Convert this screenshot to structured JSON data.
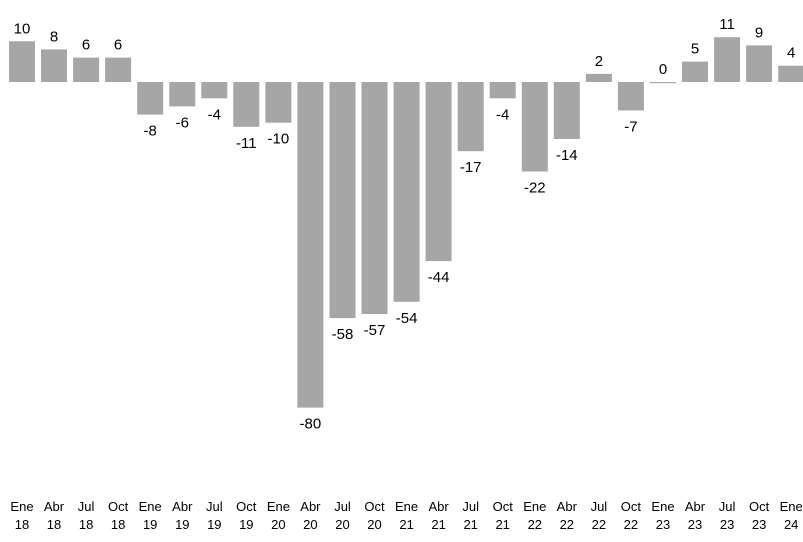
{
  "chart_data": {
    "type": "bar",
    "title": "",
    "xlabel": "",
    "ylabel": "",
    "ylim": [
      -80,
      11
    ],
    "grid": false,
    "legend": "none",
    "bar_color": "#a6a6a6",
    "label_color": "#000000",
    "background": "#ffffff",
    "categories": [
      {
        "month": "Ene",
        "year": "18"
      },
      {
        "month": "Abr",
        "year": "18"
      },
      {
        "month": "Jul",
        "year": "18"
      },
      {
        "month": "Oct",
        "year": "18"
      },
      {
        "month": "Ene",
        "year": "19"
      },
      {
        "month": "Abr",
        "year": "19"
      },
      {
        "month": "Jul",
        "year": "19"
      },
      {
        "month": "Oct",
        "year": "19"
      },
      {
        "month": "Ene",
        "year": "20"
      },
      {
        "month": "Abr",
        "year": "20"
      },
      {
        "month": "Jul",
        "year": "20"
      },
      {
        "month": "Oct",
        "year": "20"
      },
      {
        "month": "Ene",
        "year": "21"
      },
      {
        "month": "Abr",
        "year": "21"
      },
      {
        "month": "Jul",
        "year": "21"
      },
      {
        "month": "Oct",
        "year": "21"
      },
      {
        "month": "Ene",
        "year": "22"
      },
      {
        "month": "Abr",
        "year": "22"
      },
      {
        "month": "Jul",
        "year": "22"
      },
      {
        "month": "Oct",
        "year": "22"
      },
      {
        "month": "Ene",
        "year": "23"
      },
      {
        "month": "Abr",
        "year": "23"
      },
      {
        "month": "Jul",
        "year": "23"
      },
      {
        "month": "Oct",
        "year": "23"
      },
      {
        "month": "Ene",
        "year": "24"
      }
    ],
    "values": [
      10,
      8,
      6,
      6,
      -8,
      -6,
      -4,
      -11,
      -10,
      -80,
      -58,
      -57,
      -54,
      -44,
      -17,
      -4,
      -22,
      -14,
      2,
      -7,
      0,
      5,
      11,
      9,
      4
    ]
  }
}
